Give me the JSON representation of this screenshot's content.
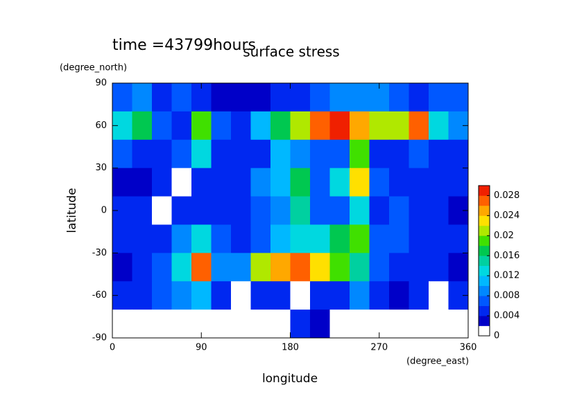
{
  "chart_data": {
    "type": "contour",
    "title": "surface stress",
    "subtitle": "time =43799hours",
    "x_label": "longitude",
    "x_unit": "(degree_east)",
    "y_label": "latitude",
    "y_unit": "(degree_north)",
    "xlim": [
      0,
      360
    ],
    "xticks": [
      0,
      90,
      180,
      270,
      360
    ],
    "ylim": [
      -90,
      90
    ],
    "yticks": [
      -90,
      -60,
      -30,
      0,
      30,
      60,
      90
    ],
    "x": [
      10,
      30,
      50,
      70,
      90,
      110,
      130,
      150,
      170,
      190,
      210,
      230,
      250,
      270,
      290,
      310,
      330,
      350
    ],
    "y": [
      80,
      60,
      40,
      20,
      0,
      -20,
      -40,
      -60,
      -80
    ],
    "z": [
      [
        0.006,
        0.008,
        0.005,
        0.006,
        0.004,
        0.003,
        0.002,
        0.002,
        0.004,
        0.004,
        0.006,
        0.008,
        0.008,
        0.008,
        0.006,
        0.005,
        0.006,
        0.006
      ],
      [
        0.012,
        0.016,
        0.006,
        0.005,
        0.018,
        0.006,
        0.004,
        0.01,
        0.016,
        0.02,
        0.026,
        0.028,
        0.024,
        0.02,
        0.02,
        0.026,
        0.012,
        0.008
      ],
      [
        0.006,
        0.005,
        0.004,
        0.006,
        0.012,
        0.004,
        0.004,
        0.004,
        0.01,
        0.008,
        0.006,
        0.006,
        0.018,
        0.004,
        0.004,
        0.006,
        0.004,
        0.004
      ],
      [
        0.003,
        0.002,
        0.004,
        0.001,
        0.004,
        0.004,
        0.004,
        0.008,
        0.01,
        0.016,
        0.006,
        0.012,
        0.022,
        0.006,
        0.004,
        0.004,
        0.004,
        0.004
      ],
      [
        0.004,
        0.004,
        0.001,
        0.004,
        0.004,
        0.004,
        0.004,
        0.006,
        0.008,
        0.014,
        0.006,
        0.006,
        0.012,
        0.004,
        0.006,
        0.004,
        0.004,
        0.003
      ],
      [
        0.004,
        0.004,
        0.005,
        0.008,
        0.012,
        0.006,
        0.004,
        0.006,
        0.01,
        0.012,
        0.012,
        0.016,
        0.018,
        0.006,
        0.006,
        0.004,
        0.004,
        0.004
      ],
      [
        0.003,
        0.004,
        0.006,
        0.012,
        0.026,
        0.008,
        0.008,
        0.02,
        0.024,
        0.026,
        0.022,
        0.018,
        0.014,
        0.006,
        0.005,
        0.004,
        0.004,
        0.003
      ],
      [
        0.004,
        0.004,
        0.006,
        0.008,
        0.01,
        0.004,
        0.001,
        0.004,
        0.004,
        0.001,
        0.004,
        0.004,
        0.008,
        0.004,
        0.003,
        0.004,
        0.001,
        0.004
      ],
      [
        0,
        0,
        0,
        0,
        0,
        0,
        0,
        0,
        0,
        0.004,
        0.003,
        0,
        0,
        0,
        0,
        0,
        0,
        0
      ]
    ],
    "clim": [
      0,
      0.03
    ],
    "cticks": [
      0,
      0.004,
      0.008,
      0.012,
      0.016,
      0.02,
      0.024,
      0.028
    ],
    "colors": [
      "#ffffff",
      "#0000c8",
      "#0028f0",
      "#0058ff",
      "#0088ff",
      "#00b8ff",
      "#00d8e0",
      "#00d0a0",
      "#00c850",
      "#40e000",
      "#b0e800",
      "#ffe000",
      "#ffa800",
      "#ff6000",
      "#f02000"
    ]
  }
}
